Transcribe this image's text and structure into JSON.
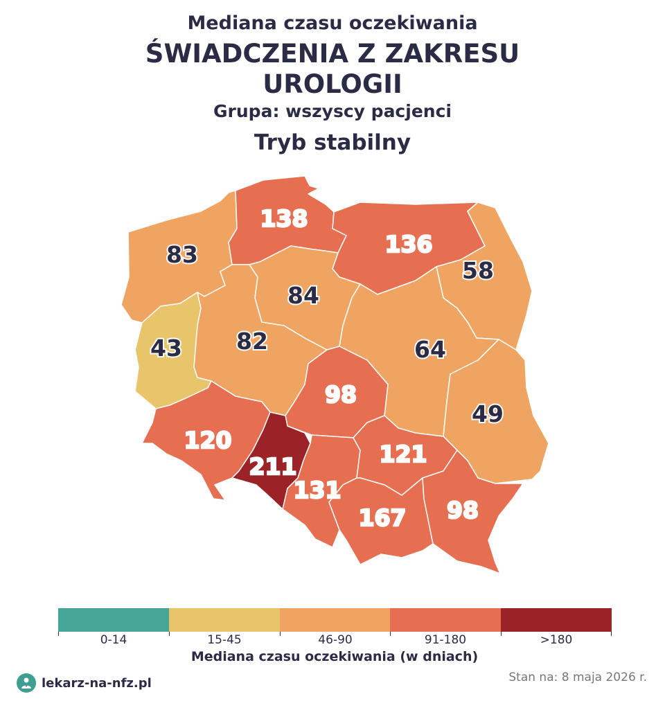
{
  "header": {
    "line1": "Mediana czasu oczekiwania",
    "line2": "ŚWIADCZENIA Z ZAKRESU",
    "line3": "UROLOGII",
    "group": "Grupa: wszyscy pacjenci",
    "mode": "Tryb stabilny"
  },
  "chart_data": {
    "type": "choropleth",
    "unit": "dni",
    "regions": [
      {
        "id": "zachodniopomorskie",
        "value": 83,
        "label": "83"
      },
      {
        "id": "pomorskie",
        "value": 138,
        "label": "138"
      },
      {
        "id": "warminsko-mazurskie",
        "value": 136,
        "label": "136"
      },
      {
        "id": "podlaskie",
        "value": 58,
        "label": "58"
      },
      {
        "id": "lubuskie",
        "value": 43,
        "label": "43"
      },
      {
        "id": "wielkopolskie",
        "value": 82,
        "label": "82"
      },
      {
        "id": "kujawsko-pomorskie",
        "value": 84,
        "label": "84"
      },
      {
        "id": "mazowieckie",
        "value": 64,
        "label": "64"
      },
      {
        "id": "lodzkie",
        "value": 98,
        "label": "98"
      },
      {
        "id": "lubelskie",
        "value": 49,
        "label": "49"
      },
      {
        "id": "dolnoslaskie",
        "value": 120,
        "label": "120"
      },
      {
        "id": "opolskie",
        "value": 211,
        "label": "211"
      },
      {
        "id": "slaskie",
        "value": 131,
        "label": "131"
      },
      {
        "id": "swietokrzyskie",
        "value": 121,
        "label": "121"
      },
      {
        "id": "malopolskie",
        "value": 167,
        "label": "167"
      },
      {
        "id": "podkarpackie",
        "value": 98,
        "label": "98"
      }
    ],
    "legend": {
      "title": "Mediana czasu oczekiwania (w dniach)",
      "bins": [
        {
          "label": "0-14",
          "color": "#45a597"
        },
        {
          "label": "15-45",
          "color": "#e8c46b"
        },
        {
          "label": "46-90",
          "color": "#f0a462"
        },
        {
          "label": "91-180",
          "color": "#e76f51"
        },
        {
          "label": ">180",
          "color": "#9b2226"
        }
      ]
    }
  },
  "footer": {
    "brand": "lekarz-na-nfz.pl",
    "date": "Stan na: 8 maja 2026 r."
  },
  "colors": {
    "title": "#2b2b45",
    "region_border": "#ffffff"
  }
}
